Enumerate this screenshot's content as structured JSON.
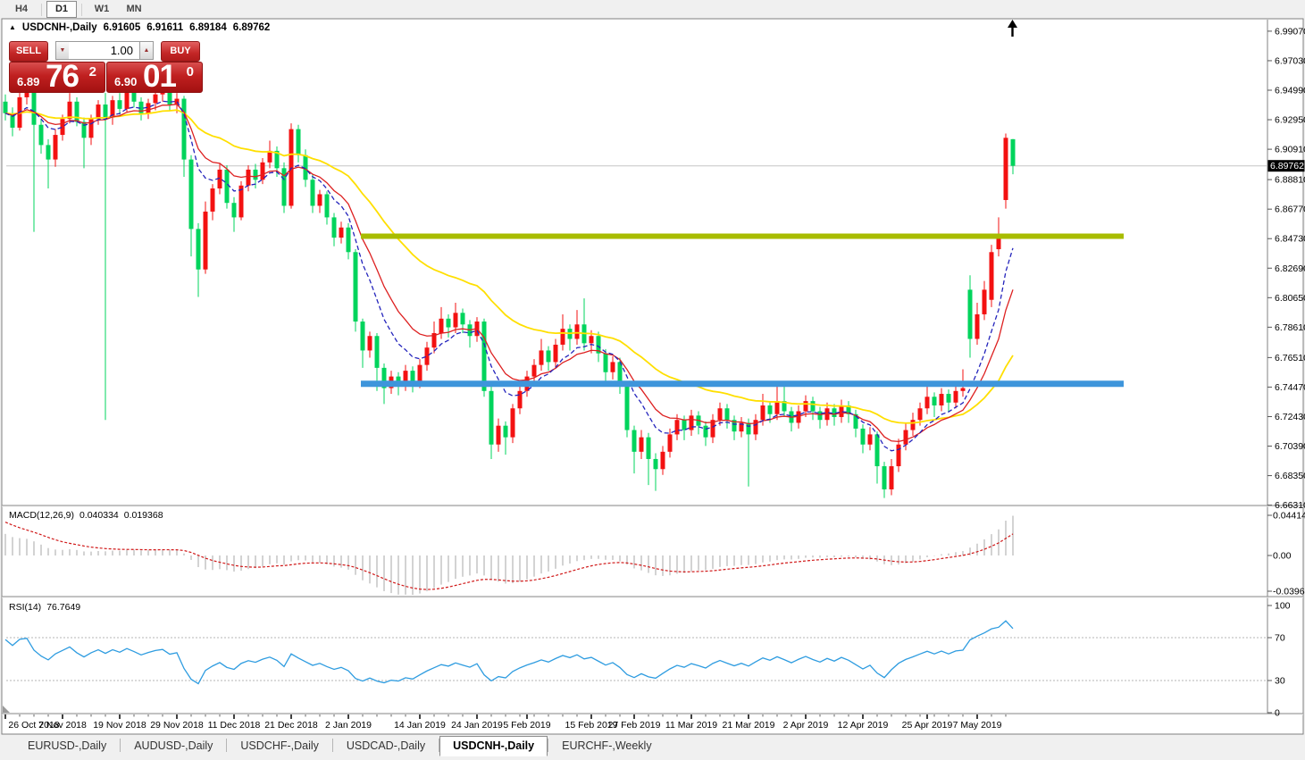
{
  "toolbar": {
    "timeframes": [
      {
        "label": "H4",
        "active": false
      },
      {
        "label": "D1",
        "active": true
      },
      {
        "label": "W1",
        "active": false
      },
      {
        "label": "MN",
        "active": false
      }
    ]
  },
  "title": {
    "collapse_glyph": "▲",
    "symbol": "USDCNH-,Daily",
    "open": "6.91605",
    "high": "6.91611",
    "low": "6.89184",
    "close": "6.89762"
  },
  "trade": {
    "sell_label": "SELL",
    "buy_label": "BUY",
    "volume": "1.00",
    "spin_down_glyph": "▼",
    "spin_up_glyph": "▲",
    "bid_small": "6.89",
    "bid_big": "76",
    "bid_sup": "2",
    "ask_small": "6.90",
    "ask_big": "01",
    "ask_sup": "0"
  },
  "price_scale": {
    "current": "6.89762",
    "ticks": [
      "6.99070",
      "6.97030",
      "6.94990",
      "6.92950",
      "6.90910",
      "6.88810",
      "6.86770",
      "6.84730",
      "6.82690",
      "6.80650",
      "6.78610",
      "6.76510",
      "6.74470",
      "6.72430",
      "6.70390",
      "6.68350",
      "6.66310"
    ]
  },
  "date_scale": [
    {
      "label": "26 Oct 2018",
      "bar": 0
    },
    {
      "label": "7 Nov 2018",
      "bar": 8
    },
    {
      "label": "19 Nov 2018",
      "bar": 16
    },
    {
      "label": "29 Nov 2018",
      "bar": 24
    },
    {
      "label": "11 Dec 2018",
      "bar": 32
    },
    {
      "label": "21 Dec 2018",
      "bar": 40
    },
    {
      "label": "2 Jan 2019",
      "bar": 48
    },
    {
      "label": "14 Jan 2019",
      "bar": 58
    },
    {
      "label": "24 Jan 2019",
      "bar": 66
    },
    {
      "label": "5 Feb 2019",
      "bar": 73
    },
    {
      "label": "15 Feb 2019",
      "bar": 82
    },
    {
      "label": "27 Feb 2019",
      "bar": 88
    },
    {
      "label": "11 Mar 2019",
      "bar": 96
    },
    {
      "label": "21 Mar 2019",
      "bar": 104
    },
    {
      "label": "2 Apr 2019",
      "bar": 112
    },
    {
      "label": "12 Apr 2019",
      "bar": 120
    },
    {
      "label": "25 Apr 2019",
      "bar": 129
    },
    {
      "label": "7 May 2019",
      "bar": 136
    }
  ],
  "macd": {
    "label": "MACD(12,26,9)",
    "value_main": "0.040334",
    "value_signal": "0.019368",
    "axis": [
      "0.044143",
      "0.00",
      "-0.03964"
    ],
    "fast": 12,
    "slow": 26,
    "signal": 9
  },
  "rsi": {
    "label": "RSI(14)",
    "value": "76.7649",
    "axis": [
      "100",
      "70",
      "30",
      "0"
    ],
    "levels": [
      70,
      30
    ],
    "period": 14
  },
  "tabs": [
    {
      "label": "EURUSD-,Daily",
      "active": false
    },
    {
      "label": "AUDUSD-,Daily",
      "active": false
    },
    {
      "label": "USDCHF-,Daily",
      "active": false
    },
    {
      "label": "USDCAD-,Daily",
      "active": false
    },
    {
      "label": "USDCNH-,Daily",
      "active": true
    },
    {
      "label": "EURCHF-,Weekly",
      "active": false
    }
  ],
  "chart_data": {
    "type": "candlestick",
    "symbol": "USDCNH",
    "timeframe": "Daily",
    "colors": {
      "up": "#f31111",
      "down": "#00d45c",
      "ma_fast_blue": "#2424bc",
      "ma_mid_red": "#dd2020",
      "ma_slow_yellow": "#ffdf00",
      "macd_hist": "#c4c4c4",
      "macd_signal": "#d01818",
      "rsi_line": "#2e9ce0",
      "current_price_line": "#c6c6c6",
      "hline_olive": "#a8bc00",
      "hline_blue": "#3e95db"
    },
    "horizontal_lines": [
      {
        "name": "resistance-line",
        "price": 6.849,
        "color": "#a8bc00",
        "thickness": 6
      },
      {
        "name": "support-line",
        "price": 6.747,
        "color": "#3e95db",
        "thickness": 7
      }
    ],
    "candles": [
      [
        6.942,
        6.947,
        6.929,
        6.934
      ],
      [
        6.934,
        6.938,
        6.918,
        6.924
      ],
      [
        6.924,
        6.95,
        6.922,
        6.945
      ],
      [
        6.945,
        6.953,
        6.94,
        6.949
      ],
      [
        6.949,
        6.951,
        6.852,
        6.926
      ],
      [
        6.926,
        6.93,
        6.906,
        6.912
      ],
      [
        6.912,
        6.916,
        6.882,
        6.902
      ],
      [
        6.902,
        6.923,
        6.897,
        6.919
      ],
      [
        6.919,
        6.933,
        6.915,
        6.93
      ],
      [
        6.93,
        6.948,
        6.927,
        6.942
      ],
      [
        6.942,
        6.945,
        6.925,
        6.928
      ],
      [
        6.928,
        6.931,
        6.896,
        6.917
      ],
      [
        6.917,
        6.933,
        6.912,
        6.93
      ],
      [
        6.93,
        6.943,
        6.926,
        6.94
      ],
      [
        6.94,
        6.948,
        6.722,
        6.931
      ],
      [
        6.931,
        6.946,
        6.926,
        6.943
      ],
      [
        6.943,
        6.948,
        6.933,
        6.937
      ],
      [
        6.937,
        6.953,
        6.935,
        6.949
      ],
      [
        6.949,
        6.952,
        6.938,
        6.942
      ],
      [
        6.942,
        6.945,
        6.929,
        6.934
      ],
      [
        6.934,
        6.944,
        6.93,
        6.941
      ],
      [
        6.941,
        6.95,
        6.936,
        6.947
      ],
      [
        6.947,
        6.956,
        6.942,
        6.95
      ],
      [
        6.95,
        6.953,
        6.936,
        6.94
      ],
      [
        6.94,
        6.948,
        6.934,
        6.944
      ],
      [
        6.944,
        6.946,
        6.89,
        6.902
      ],
      [
        6.902,
        6.905,
        6.835,
        6.854
      ],
      [
        6.854,
        6.858,
        6.807,
        6.826
      ],
      [
        6.826,
        6.873,
        6.823,
        6.866
      ],
      [
        6.866,
        6.885,
        6.86,
        6.882
      ],
      [
        6.882,
        6.899,
        6.878,
        6.895
      ],
      [
        6.895,
        6.898,
        6.868,
        6.872
      ],
      [
        6.872,
        6.876,
        6.852,
        6.862
      ],
      [
        6.862,
        6.887,
        6.86,
        6.884
      ],
      [
        6.884,
        6.898,
        6.88,
        6.895
      ],
      [
        6.895,
        6.899,
        6.882,
        6.888
      ],
      [
        6.888,
        6.903,
        6.885,
        6.9
      ],
      [
        6.9,
        6.915,
        6.896,
        6.908
      ],
      [
        6.908,
        6.911,
        6.89,
        6.896
      ],
      [
        6.896,
        6.9,
        6.865,
        6.87
      ],
      [
        6.87,
        6.927,
        6.868,
        6.923
      ],
      [
        6.923,
        6.926,
        6.9,
        6.905
      ],
      [
        6.905,
        6.909,
        6.883,
        6.888
      ],
      [
        6.888,
        6.892,
        6.865,
        6.87
      ],
      [
        6.87,
        6.881,
        6.865,
        6.878
      ],
      [
        6.878,
        6.88,
        6.857,
        6.862
      ],
      [
        6.862,
        6.865,
        6.842,
        6.848
      ],
      [
        6.848,
        6.859,
        6.844,
        6.855
      ],
      [
        6.855,
        6.858,
        6.833,
        6.838
      ],
      [
        6.838,
        6.84,
        6.783,
        6.79
      ],
      [
        6.79,
        6.792,
        6.758,
        6.77
      ],
      [
        6.77,
        6.783,
        6.765,
        6.78
      ],
      [
        6.78,
        6.782,
        6.742,
        6.758
      ],
      [
        6.758,
        6.761,
        6.733,
        6.744
      ],
      [
        6.744,
        6.756,
        6.74,
        6.752
      ],
      [
        6.752,
        6.755,
        6.739,
        6.746
      ],
      [
        6.746,
        6.76,
        6.742,
        6.756
      ],
      [
        6.756,
        6.759,
        6.741,
        6.748
      ],
      [
        6.748,
        6.764,
        6.744,
        6.76
      ],
      [
        6.76,
        6.776,
        6.756,
        6.772
      ],
      [
        6.772,
        6.79,
        6.768,
        6.782
      ],
      [
        6.782,
        6.8,
        6.778,
        6.792
      ],
      [
        6.792,
        6.795,
        6.779,
        6.786
      ],
      [
        6.786,
        6.803,
        6.782,
        6.796
      ],
      [
        6.796,
        6.799,
        6.782,
        6.788
      ],
      [
        6.788,
        6.791,
        6.772,
        6.78
      ],
      [
        6.78,
        6.793,
        6.776,
        6.79
      ],
      [
        6.79,
        6.792,
        6.738,
        6.742
      ],
      [
        6.742,
        6.745,
        6.695,
        6.705
      ],
      [
        6.705,
        6.723,
        6.7,
        6.718
      ],
      [
        6.718,
        6.721,
        6.698,
        6.71
      ],
      [
        6.71,
        6.733,
        6.706,
        6.73
      ],
      [
        6.73,
        6.745,
        6.726,
        6.742
      ],
      [
        6.742,
        6.756,
        6.738,
        6.752
      ],
      [
        6.752,
        6.764,
        6.748,
        6.76
      ],
      [
        6.76,
        6.778,
        6.756,
        6.77
      ],
      [
        6.77,
        6.773,
        6.756,
        6.762
      ],
      [
        6.762,
        6.778,
        6.758,
        6.774
      ],
      [
        6.774,
        6.795,
        6.77,
        6.785
      ],
      [
        6.785,
        6.788,
        6.77,
        6.778
      ],
      [
        6.778,
        6.798,
        6.774,
        6.788
      ],
      [
        6.788,
        6.806,
        6.77,
        6.775
      ],
      [
        6.775,
        6.784,
        6.768,
        6.78
      ],
      [
        6.78,
        6.783,
        6.762,
        6.768
      ],
      [
        6.768,
        6.771,
        6.748,
        6.755
      ],
      [
        6.755,
        6.766,
        6.75,
        6.762
      ],
      [
        6.762,
        6.765,
        6.74,
        6.745
      ],
      [
        6.745,
        6.748,
        6.71,
        6.715
      ],
      [
        6.715,
        6.718,
        6.685,
        6.7
      ],
      [
        6.7,
        6.715,
        6.695,
        6.71
      ],
      [
        6.71,
        6.713,
        6.677,
        6.695
      ],
      [
        6.695,
        6.699,
        6.673,
        6.688
      ],
      [
        6.688,
        6.704,
        6.684,
        6.7
      ],
      [
        6.7,
        6.716,
        6.696,
        6.712
      ],
      [
        6.712,
        6.726,
        6.708,
        6.722
      ],
      [
        6.722,
        6.725,
        6.708,
        6.715
      ],
      [
        6.715,
        6.729,
        6.711,
        6.725
      ],
      [
        6.725,
        6.728,
        6.712,
        6.718
      ],
      [
        6.718,
        6.721,
        6.704,
        6.71
      ],
      [
        6.71,
        6.726,
        6.706,
        6.722
      ],
      [
        6.722,
        6.734,
        6.718,
        6.73
      ],
      [
        6.73,
        6.733,
        6.716,
        6.722
      ],
      [
        6.722,
        6.725,
        6.708,
        6.714
      ],
      [
        6.714,
        6.724,
        6.71,
        6.72
      ],
      [
        6.72,
        6.723,
        6.676,
        6.712
      ],
      [
        6.712,
        6.726,
        6.708,
        6.722
      ],
      [
        6.722,
        6.74,
        6.718,
        6.732
      ],
      [
        6.732,
        6.735,
        6.72,
        6.726
      ],
      [
        6.726,
        6.748,
        6.722,
        6.735
      ],
      [
        6.735,
        6.747,
        6.724,
        6.728
      ],
      [
        6.728,
        6.731,
        6.714,
        6.72
      ],
      [
        6.72,
        6.732,
        6.716,
        6.728
      ],
      [
        6.728,
        6.739,
        6.724,
        6.735
      ],
      [
        6.735,
        6.738,
        6.722,
        6.728
      ],
      [
        6.728,
        6.731,
        6.716,
        6.722
      ],
      [
        6.722,
        6.734,
        6.718,
        6.73
      ],
      [
        6.73,
        6.733,
        6.718,
        6.724
      ],
      [
        6.724,
        6.736,
        6.72,
        6.732
      ],
      [
        6.732,
        6.735,
        6.72,
        6.726
      ],
      [
        6.726,
        6.729,
        6.71,
        6.716
      ],
      [
        6.716,
        6.719,
        6.699,
        6.705
      ],
      [
        6.705,
        6.717,
        6.701,
        6.712
      ],
      [
        6.712,
        6.714,
        6.678,
        6.69
      ],
      [
        6.69,
        6.693,
        6.668,
        6.674
      ],
      [
        6.674,
        6.695,
        6.67,
        6.69
      ],
      [
        6.69,
        6.709,
        6.686,
        6.705
      ],
      [
        6.705,
        6.72,
        6.701,
        6.715
      ],
      [
        6.715,
        6.727,
        6.711,
        6.722
      ],
      [
        6.722,
        6.734,
        6.718,
        6.73
      ],
      [
        6.73,
        6.748,
        6.726,
        6.738
      ],
      [
        6.738,
        6.741,
        6.724,
        6.732
      ],
      [
        6.732,
        6.744,
        6.728,
        6.74
      ],
      [
        6.74,
        6.743,
        6.728,
        6.734
      ],
      [
        6.734,
        6.746,
        6.73,
        6.742
      ],
      [
        6.742,
        6.757,
        6.738,
        6.744
      ],
      [
        6.812,
        6.822,
        6.765,
        6.778
      ],
      [
        6.778,
        6.803,
        6.774,
        6.795
      ],
      [
        6.795,
        6.818,
        6.791,
        6.812
      ],
      [
        6.805,
        6.843,
        6.8,
        6.838
      ],
      [
        6.84,
        6.862,
        6.835,
        6.85
      ],
      [
        6.874,
        6.92,
        6.868,
        6.917
      ],
      [
        6.91605,
        6.91611,
        6.89184,
        6.89762
      ]
    ]
  }
}
